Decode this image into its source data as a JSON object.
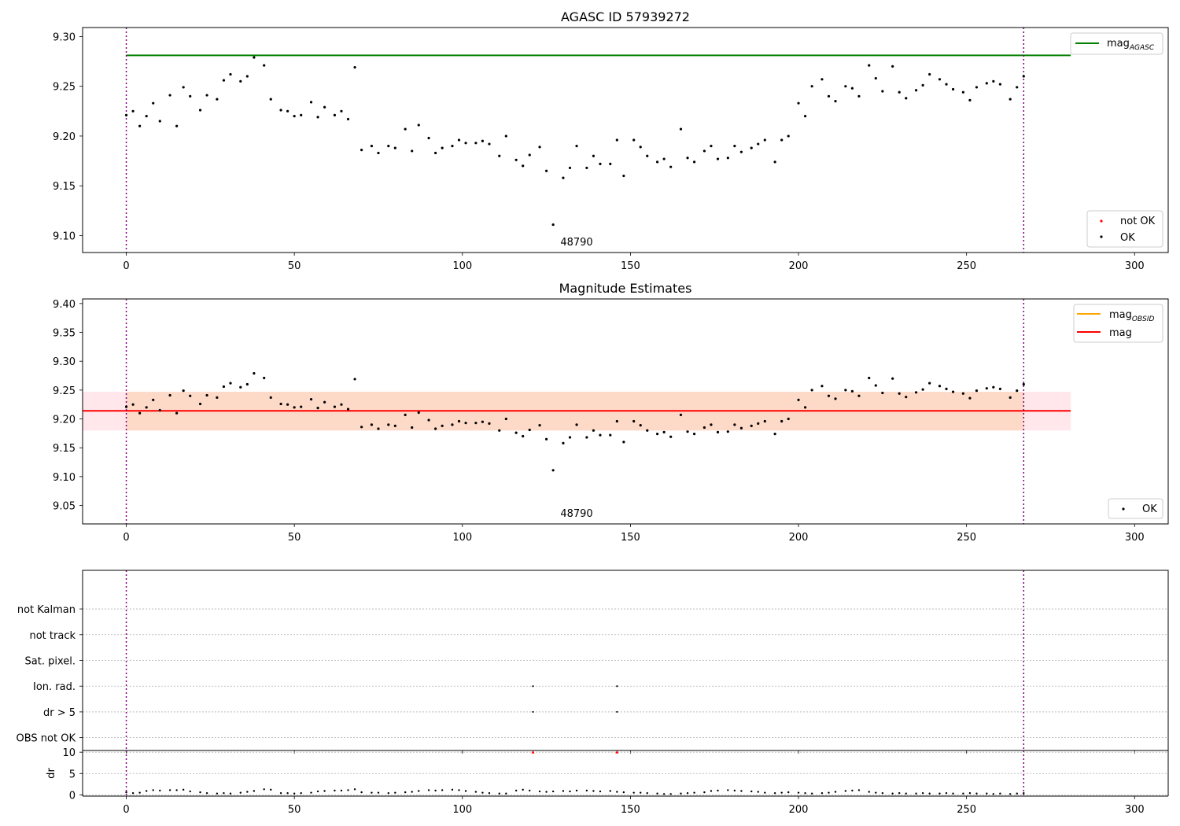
{
  "chart_data": [
    {
      "type": "scatter",
      "title": "AGASC ID 57939272",
      "xlabel": "",
      "ylabel": "",
      "xlim": [
        -13,
        310
      ],
      "ylim": [
        9.083,
        9.309
      ],
      "xticks": [
        "0",
        "50",
        "100",
        "150",
        "200",
        "250",
        "300"
      ],
      "yticks": [
        "9.10",
        "9.15",
        "9.20",
        "9.25",
        "9.30"
      ],
      "grid": false,
      "legend_top": {
        "position": "top-right",
        "entries": [
          {
            "label": "mag",
            "sub": "AGASC",
            "color": "#008000"
          }
        ]
      },
      "legend_bottom": {
        "position": "bottom-right",
        "entries": [
          {
            "label": "not OK",
            "color": "#ff0000"
          },
          {
            "label": "OK",
            "color": "#000000"
          }
        ]
      },
      "hlines": [
        {
          "name": "mag AGASC",
          "y": 9.281,
          "x_range": [
            0,
            281
          ],
          "color": "#008000"
        }
      ],
      "obsid_markers": [
        {
          "x": 0
        },
        {
          "x": 267
        }
      ],
      "obsid_label": {
        "text": "48790",
        "x": 133.5
      },
      "series": [
        {
          "name": "OK",
          "color": "#000000",
          "x": [
            0,
            2,
            4,
            6,
            8,
            10,
            13,
            15,
            17,
            19,
            22,
            24,
            27,
            29,
            31,
            34,
            36,
            38,
            41,
            43,
            46,
            48,
            50,
            52,
            55,
            57,
            59,
            62,
            64,
            66,
            68,
            70,
            73,
            75,
            78,
            80,
            83,
            85,
            87,
            90,
            92,
            94,
            97,
            99,
            101,
            104,
            106,
            108,
            111,
            113,
            116,
            118,
            120,
            123,
            125,
            127,
            130,
            132,
            134,
            137,
            139,
            141,
            144,
            146,
            148,
            151,
            153,
            155,
            158,
            160,
            162,
            165,
            167,
            169,
            172,
            174,
            176,
            179,
            181,
            183,
            186,
            188,
            190,
            193,
            195,
            197,
            200,
            202,
            204,
            207,
            209,
            211,
            214,
            216,
            218,
            221,
            223,
            225,
            228,
            230,
            232,
            235,
            237,
            239,
            242,
            244,
            246,
            249,
            251,
            253,
            256,
            258,
            260,
            263,
            265,
            267
          ],
          "y": [
            9.221,
            9.225,
            9.21,
            9.22,
            9.233,
            9.215,
            9.241,
            9.21,
            9.249,
            9.24,
            9.226,
            9.241,
            9.237,
            9.256,
            9.262,
            9.255,
            9.26,
            9.279,
            9.271,
            9.237,
            9.226,
            9.225,
            9.22,
            9.221,
            9.234,
            9.219,
            9.229,
            9.221,
            9.225,
            9.217,
            9.269,
            9.186,
            9.19,
            9.183,
            9.19,
            9.188,
            9.207,
            9.185,
            9.211,
            9.198,
            9.183,
            9.188,
            9.19,
            9.196,
            9.193,
            9.193,
            9.195,
            9.192,
            9.18,
            9.2,
            9.176,
            9.17,
            9.181,
            9.189,
            9.165,
            9.111,
            9.158,
            9.168,
            9.19,
            9.168,
            9.18,
            9.172,
            9.172,
            9.196,
            9.16,
            9.196,
            9.189,
            9.18,
            9.174,
            9.177,
            9.169,
            9.207,
            9.178,
            9.174,
            9.185,
            9.19,
            9.177,
            9.178,
            9.19,
            9.184,
            9.188,
            9.192,
            9.196,
            9.174,
            9.196,
            9.2,
            9.233,
            9.22,
            9.25,
            9.257,
            9.24,
            9.235,
            9.25,
            9.248,
            9.24,
            9.271,
            9.258,
            9.245,
            9.27,
            9.244,
            9.238,
            9.246,
            9.251,
            9.262,
            9.257,
            9.252,
            9.247,
            9.244,
            9.236,
            9.249,
            9.253,
            9.255,
            9.252,
            9.237,
            9.249,
            9.26
          ]
        }
      ]
    },
    {
      "type": "scatter",
      "title": "Magnitude Estimates",
      "xlabel": "",
      "ylabel": "",
      "xlim": [
        -13,
        310
      ],
      "ylim": [
        9.018,
        9.408
      ],
      "xticks": [
        "0",
        "50",
        "100",
        "150",
        "200",
        "250",
        "300"
      ],
      "yticks": [
        "9.05",
        "9.10",
        "9.15",
        "9.20",
        "9.25",
        "9.30",
        "9.35",
        "9.40"
      ],
      "grid": false,
      "legend_top": {
        "position": "top-right",
        "entries": [
          {
            "label": "mag",
            "sub": "OBSID",
            "color": "#ffa500"
          },
          {
            "label": "mag",
            "color": "#ff0000"
          }
        ]
      },
      "legend_bottom": {
        "position": "bottom-right",
        "entries": [
          {
            "label": "OK",
            "color": "#000000"
          }
        ]
      },
      "bands": [
        {
          "name": "mag range",
          "y_range": [
            9.18,
            9.247
          ],
          "x_range": [
            -13,
            281
          ],
          "color": "#ffe4ea"
        },
        {
          "name": "mag OBSID range",
          "y_range": [
            9.18,
            9.247
          ],
          "x_range": [
            0,
            267
          ],
          "color": "#fdd8c4"
        }
      ],
      "hlines": [
        {
          "name": "mag",
          "y": 9.214,
          "x_range": [
            -13,
            281
          ],
          "color": "#ff0000"
        }
      ],
      "obsid_markers": [
        {
          "x": 0
        },
        {
          "x": 267
        }
      ],
      "obsid_label": {
        "text": "48790",
        "x": 133.5
      },
      "series": [
        {
          "name": "OK",
          "color": "#000000",
          "x": [
            0,
            2,
            4,
            6,
            8,
            10,
            13,
            15,
            17,
            19,
            22,
            24,
            27,
            29,
            31,
            34,
            36,
            38,
            41,
            43,
            46,
            48,
            50,
            52,
            55,
            57,
            59,
            62,
            64,
            66,
            68,
            70,
            73,
            75,
            78,
            80,
            83,
            85,
            87,
            90,
            92,
            94,
            97,
            99,
            101,
            104,
            106,
            108,
            111,
            113,
            116,
            118,
            120,
            123,
            125,
            127,
            130,
            132,
            134,
            137,
            139,
            141,
            144,
            146,
            148,
            151,
            153,
            155,
            158,
            160,
            162,
            165,
            167,
            169,
            172,
            174,
            176,
            179,
            181,
            183,
            186,
            188,
            190,
            193,
            195,
            197,
            200,
            202,
            204,
            207,
            209,
            211,
            214,
            216,
            218,
            221,
            223,
            225,
            228,
            230,
            232,
            235,
            237,
            239,
            242,
            244,
            246,
            249,
            251,
            253,
            256,
            258,
            260,
            263,
            265,
            267
          ],
          "y": [
            9.221,
            9.225,
            9.21,
            9.22,
            9.233,
            9.215,
            9.241,
            9.21,
            9.249,
            9.24,
            9.226,
            9.241,
            9.237,
            9.256,
            9.262,
            9.255,
            9.26,
            9.279,
            9.271,
            9.237,
            9.226,
            9.225,
            9.22,
            9.221,
            9.234,
            9.219,
            9.229,
            9.221,
            9.225,
            9.217,
            9.269,
            9.186,
            9.19,
            9.183,
            9.19,
            9.188,
            9.207,
            9.185,
            9.211,
            9.198,
            9.183,
            9.188,
            9.19,
            9.196,
            9.193,
            9.193,
            9.195,
            9.192,
            9.18,
            9.2,
            9.176,
            9.17,
            9.181,
            9.189,
            9.165,
            9.111,
            9.158,
            9.168,
            9.19,
            9.168,
            9.18,
            9.172,
            9.172,
            9.196,
            9.16,
            9.196,
            9.189,
            9.18,
            9.174,
            9.177,
            9.169,
            9.207,
            9.178,
            9.174,
            9.185,
            9.19,
            9.177,
            9.178,
            9.19,
            9.184,
            9.188,
            9.192,
            9.196,
            9.174,
            9.196,
            9.2,
            9.233,
            9.22,
            9.25,
            9.257,
            9.24,
            9.235,
            9.25,
            9.248,
            9.24,
            9.271,
            9.258,
            9.245,
            9.27,
            9.244,
            9.238,
            9.246,
            9.251,
            9.262,
            9.257,
            9.252,
            9.247,
            9.244,
            9.236,
            9.249,
            9.253,
            9.255,
            9.252,
            9.237,
            9.249,
            9.26
          ]
        }
      ]
    },
    {
      "type": "scatter",
      "title": "",
      "xlim": [
        -13,
        310
      ],
      "ylim": [
        -0.5,
        6.5
      ],
      "xticks": [
        "0",
        "50",
        "100",
        "150",
        "200",
        "250",
        "300"
      ],
      "categories": [
        "OBS not OK",
        "dr > 5",
        "Ion. rad.",
        "Sat. pixel.",
        "not track",
        "not Kalman"
      ],
      "grid": true,
      "obsid_markers": [
        {
          "x": 0
        },
        {
          "x": 267
        }
      ],
      "flags": [
        {
          "category": "dr > 5",
          "x": [
            121,
            146
          ]
        },
        {
          "category": "Ion. rad.",
          "x": [
            121,
            146
          ]
        }
      ]
    },
    {
      "type": "scatter",
      "title": "",
      "xlabel": "",
      "ylabel": "dr",
      "xlim": [
        -13,
        310
      ],
      "ylim": [
        -0.3,
        10.4
      ],
      "xticks": [
        "0",
        "50",
        "100",
        "150",
        "200",
        "250",
        "300"
      ],
      "yticks": [
        "0",
        "5",
        "10"
      ],
      "grid": true,
      "obsid_markers": [
        {
          "x": 0
        },
        {
          "x": 267
        }
      ],
      "series": [
        {
          "name": "not OK",
          "color": "#ff0000",
          "marker": "triangle",
          "x": [
            121,
            146
          ],
          "y": [
            10,
            10
          ]
        },
        {
          "name": "OK",
          "color": "#000000",
          "x": [
            0,
            2,
            4,
            6,
            8,
            10,
            13,
            15,
            17,
            19,
            22,
            24,
            27,
            29,
            31,
            34,
            36,
            38,
            41,
            43,
            46,
            48,
            50,
            52,
            55,
            57,
            59,
            62,
            64,
            66,
            68,
            70,
            73,
            75,
            78,
            80,
            83,
            85,
            87,
            90,
            92,
            94,
            97,
            99,
            101,
            104,
            106,
            108,
            111,
            113,
            116,
            118,
            120,
            123,
            125,
            127,
            130,
            132,
            134,
            137,
            139,
            141,
            144,
            146,
            148,
            151,
            153,
            155,
            158,
            160,
            162,
            165,
            167,
            169,
            172,
            174,
            176,
            179,
            181,
            183,
            186,
            188,
            190,
            193,
            195,
            197,
            200,
            202,
            204,
            207,
            209,
            211,
            214,
            216,
            218,
            221,
            223,
            225,
            228,
            230,
            232,
            235,
            237,
            239,
            242,
            244,
            246,
            249,
            251,
            253,
            256,
            258,
            260,
            263,
            265,
            267
          ],
          "y": [
            0.6,
            0.4,
            0.5,
            0.9,
            1.1,
            1.0,
            1.1,
            1.1,
            1.2,
            0.8,
            0.6,
            0.4,
            0.3,
            0.4,
            0.3,
            0.5,
            0.7,
            0.9,
            1.3,
            1.2,
            0.4,
            0.4,
            0.3,
            0.4,
            0.5,
            0.8,
            0.9,
            1.0,
            1.0,
            1.1,
            1.3,
            0.6,
            0.5,
            0.5,
            0.4,
            0.5,
            0.6,
            0.7,
            0.9,
            1.1,
            1.0,
            1.1,
            1.2,
            1.1,
            0.9,
            0.7,
            0.5,
            0.4,
            0.3,
            0.3,
            1.0,
            1.2,
            1.0,
            0.8,
            0.7,
            0.8,
            0.9,
            0.8,
            1.0,
            1.0,
            0.9,
            0.8,
            0.9,
            0.7,
            0.6,
            0.5,
            0.5,
            0.4,
            0.3,
            0.2,
            0.2,
            0.3,
            0.4,
            0.5,
            0.6,
            0.9,
            1.0,
            1.1,
            1.0,
            0.9,
            0.8,
            0.7,
            0.5,
            0.4,
            0.5,
            0.6,
            0.5,
            0.4,
            0.3,
            0.4,
            0.5,
            0.7,
            0.9,
            1.0,
            1.1,
            0.7,
            0.5,
            0.4,
            0.3,
            0.4,
            0.3,
            0.3,
            0.4,
            0.3,
            0.3,
            0.4,
            0.3,
            0.3,
            0.4,
            0.3,
            0.3,
            0.2,
            0.3,
            0.2,
            0.3,
            0.4
          ]
        }
      ]
    }
  ]
}
